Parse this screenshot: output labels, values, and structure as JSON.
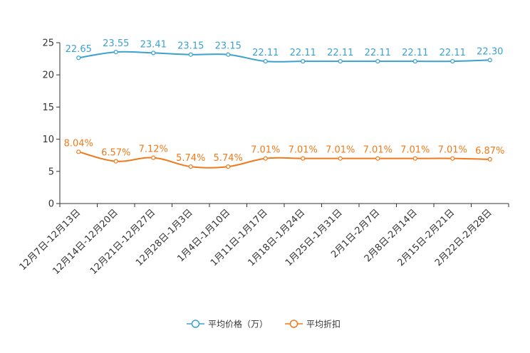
{
  "chart_data": {
    "type": "line",
    "title": "",
    "xlabel": "",
    "ylabel": "",
    "ylim": [
      0,
      25
    ],
    "yticks": [
      0,
      5,
      10,
      15,
      20,
      25
    ],
    "grid": false,
    "legend_position": "bottom-center",
    "categories": [
      "12月7日-12月13日",
      "12月14日-12月20日",
      "12月21日-12月27日",
      "12月28日-1月3日",
      "1月4日-1月10日",
      "1月11日-1月17日",
      "1月18日-1月24日",
      "1月25日-1月31日",
      "2月1日-2月7日",
      "2月8日-2月14日",
      "2月15日-2月21日",
      "2月22日-2月28日"
    ],
    "series": [
      {
        "name": "平均价格（万）",
        "color": "#3ba1cf",
        "values": [
          22.65,
          23.55,
          23.41,
          23.15,
          23.15,
          22.11,
          22.11,
          22.11,
          22.11,
          22.11,
          22.11,
          22.3
        ],
        "labels": [
          "22.65",
          "23.55",
          "23.41",
          "23.15",
          "23.15",
          "22.11",
          "22.11",
          "22.11",
          "22.11",
          "22.11",
          "22.11",
          "22.30"
        ]
      },
      {
        "name": "平均折扣",
        "color": "#f07a1a",
        "values": [
          8.04,
          6.57,
          7.12,
          5.74,
          5.74,
          7.01,
          7.01,
          7.01,
          7.01,
          7.01,
          7.01,
          6.87
        ],
        "labels": [
          "8.04%",
          "6.57%",
          "7.12%",
          "5.74%",
          "5.74%",
          "7.01%",
          "7.01%",
          "7.01%",
          "7.01%",
          "7.01%",
          "7.01%",
          "6.87%"
        ]
      }
    ]
  }
}
